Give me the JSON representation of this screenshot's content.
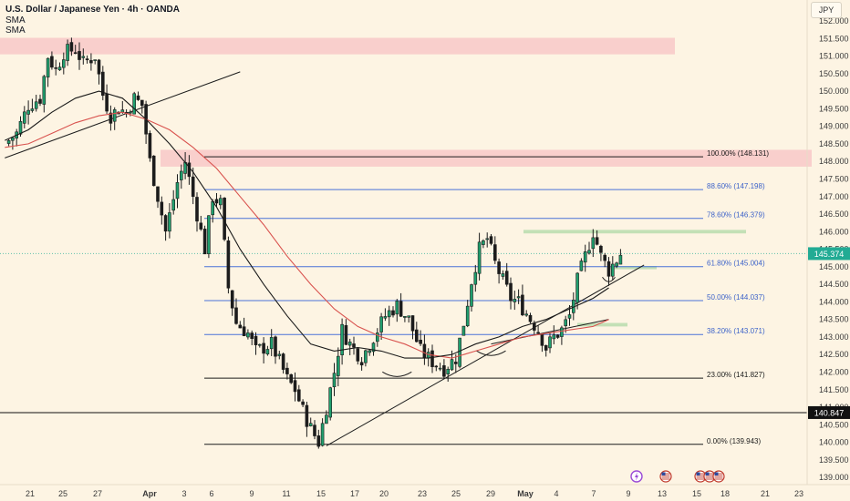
{
  "header": {
    "title": "U.S. Dollar / Japanese Yen · 4h · OANDA",
    "indicator_1": "SMA",
    "indicator_2": "SMA"
  },
  "currency_button": "JPY",
  "price_badges": {
    "current": "145.374",
    "marked": "140.847"
  },
  "colors": {
    "background": "#fdf4e3",
    "up_candle": "#1f1f1f",
    "fib_line": "#4a72d8",
    "fib_text": "#3d63c9",
    "resistance_zone": "#f8c6c6",
    "support_zone": "#b9dcae",
    "sma_fast": "#1a1a1a",
    "sma_slow": "#d9534f",
    "current_badge": "#22ab94"
  },
  "event_icons": [
    "lightning-icon",
    "us-flag-icon",
    "us-flag-icon",
    "us-flag-icon",
    "us-flag-icon"
  ],
  "chart_data": {
    "type": "candlestick",
    "symbol": "USDJPY",
    "timeframe": "4h",
    "ylim": [
      138.7,
      152.2
    ],
    "y_ticks": [
      "152.000",
      "151.500",
      "151.000",
      "150.500",
      "150.000",
      "149.500",
      "149.000",
      "148.500",
      "148.000",
      "147.500",
      "147.000",
      "146.500",
      "146.000",
      "145.500",
      "145.000",
      "144.500",
      "144.000",
      "143.500",
      "143.000",
      "142.500",
      "142.000",
      "141.500",
      "141.000",
      "140.500",
      "140.000",
      "139.500",
      "139.000"
    ],
    "x_ticks": [
      "21",
      "25",
      "27",
      "Apr",
      "3",
      "6",
      "9",
      "11",
      "15",
      "17",
      "20",
      "23",
      "25",
      "29",
      "May",
      "4",
      "7",
      "9",
      "13",
      "15",
      "18",
      "21",
      "23"
    ],
    "fibonacci_levels": [
      {
        "label": "100.00% (148.131)",
        "value": 148.131
      },
      {
        "label": "88.60% (147.198)",
        "value": 147.198
      },
      {
        "label": "78.60% (146.379)",
        "value": 146.379
      },
      {
        "label": "61.80% (145.004)",
        "value": 145.004
      },
      {
        "label": "50.00% (144.037)",
        "value": 144.037
      },
      {
        "label": "38.20% (143.071)",
        "value": 143.071
      },
      {
        "label": "23.00% (141.827)",
        "value": 141.827
      },
      {
        "label": "0.00% (139.943)",
        "value": 139.943
      }
    ],
    "resistance_zones": [
      [
        151.05,
        151.52
      ],
      [
        147.85,
        148.33
      ]
    ],
    "support_zones": [
      [
        145.95,
        146.05
      ],
      [
        144.93,
        145.02
      ],
      [
        143.3,
        143.4
      ]
    ],
    "horizontal_line": 140.847,
    "current_price": 145.374,
    "close_path": [
      [
        0,
        148.5
      ],
      [
        3,
        148.8
      ],
      [
        6,
        149.6
      ],
      [
        9,
        149.8
      ],
      [
        11,
        151.0
      ],
      [
        13,
        150.6
      ],
      [
        15,
        151.1
      ],
      [
        18,
        151.2
      ],
      [
        20,
        150.8
      ],
      [
        23,
        151.0
      ],
      [
        25,
        149.9
      ],
      [
        27,
        149.3
      ],
      [
        29,
        149.5
      ],
      [
        31,
        149.4
      ],
      [
        33,
        149.8
      ],
      [
        35,
        149.6
      ],
      [
        37,
        148.0
      ],
      [
        39,
        147.0
      ],
      [
        41,
        146.0
      ],
      [
        44,
        147.4
      ],
      [
        46,
        148.0
      ],
      [
        49,
        146.5
      ],
      [
        51,
        145.5
      ],
      [
        53,
        147.0
      ],
      [
        55,
        146.8
      ],
      [
        57,
        144.4
      ],
      [
        59,
        143.4
      ],
      [
        62,
        143.1
      ],
      [
        64,
        142.6
      ],
      [
        68,
        142.8
      ],
      [
        72,
        141.8
      ],
      [
        74,
        141.5
      ],
      [
        76,
        140.9
      ],
      [
        78,
        140.4
      ],
      [
        80,
        140.0
      ],
      [
        82,
        141.0
      ],
      [
        84,
        142.0
      ],
      [
        86,
        143.2
      ],
      [
        88,
        142.8
      ],
      [
        91,
        142.4
      ],
      [
        94,
        143.0
      ],
      [
        97,
        143.6
      ],
      [
        100,
        143.9
      ],
      [
        103,
        143.5
      ],
      [
        106,
        142.6
      ],
      [
        109,
        142.3
      ],
      [
        112,
        142.1
      ],
      [
        115,
        142.4
      ],
      [
        117,
        143.4
      ],
      [
        119,
        144.6
      ],
      [
        121,
        145.5
      ],
      [
        123,
        145.8
      ],
      [
        125,
        145.1
      ],
      [
        127,
        144.6
      ],
      [
        129,
        144.1
      ],
      [
        131,
        144.0
      ],
      [
        134,
        143.5
      ],
      [
        136,
        143.2
      ],
      [
        138,
        142.7
      ],
      [
        140,
        143.0
      ],
      [
        142,
        143.2
      ],
      [
        144,
        143.6
      ],
      [
        146,
        144.6
      ],
      [
        148,
        145.3
      ],
      [
        150,
        146.0
      ],
      [
        152,
        145.3
      ],
      [
        154,
        144.9
      ],
      [
        156,
        145.2
      ],
      [
        157,
        145.374
      ]
    ],
    "sma_fast": [
      [
        0,
        148.6
      ],
      [
        6,
        148.9
      ],
      [
        12,
        149.4
      ],
      [
        18,
        149.8
      ],
      [
        24,
        150.0
      ],
      [
        30,
        149.8
      ],
      [
        36,
        149.2
      ],
      [
        42,
        148.5
      ],
      [
        48,
        147.7
      ],
      [
        54,
        146.7
      ],
      [
        60,
        145.5
      ],
      [
        66,
        144.5
      ],
      [
        72,
        143.6
      ],
      [
        78,
        142.8
      ],
      [
        84,
        142.6
      ],
      [
        90,
        142.7
      ],
      [
        96,
        142.6
      ],
      [
        102,
        142.4
      ],
      [
        108,
        142.4
      ],
      [
        114,
        142.5
      ],
      [
        120,
        142.8
      ],
      [
        126,
        143.0
      ],
      [
        132,
        143.3
      ],
      [
        138,
        143.5
      ],
      [
        144,
        143.8
      ],
      [
        150,
        144.1
      ],
      [
        154,
        144.4
      ]
    ],
    "sma_slow": [
      [
        0,
        148.4
      ],
      [
        6,
        148.5
      ],
      [
        12,
        148.8
      ],
      [
        18,
        149.1
      ],
      [
        24,
        149.3
      ],
      [
        30,
        149.4
      ],
      [
        36,
        149.2
      ],
      [
        42,
        148.9
      ],
      [
        48,
        148.4
      ],
      [
        54,
        147.8
      ],
      [
        60,
        147.0
      ],
      [
        66,
        146.2
      ],
      [
        72,
        145.3
      ],
      [
        78,
        144.5
      ],
      [
        84,
        143.8
      ],
      [
        90,
        143.3
      ],
      [
        96,
        143.0
      ],
      [
        102,
        142.8
      ],
      [
        108,
        142.5
      ],
      [
        114,
        142.4
      ],
      [
        120,
        142.6
      ],
      [
        126,
        142.8
      ],
      [
        132,
        143.0
      ],
      [
        138,
        143.1
      ],
      [
        144,
        143.2
      ],
      [
        150,
        143.3
      ],
      [
        154,
        143.5
      ]
    ],
    "trendlines": [
      {
        "from": [
          0,
          148.1
        ],
        "to": [
          60,
          150.55
        ]
      },
      {
        "from": [
          82,
          139.9
        ],
        "to": [
          163,
          145.05
        ]
      },
      {
        "from": [
          124,
          142.8
        ],
        "to": [
          154,
          143.5
        ]
      }
    ],
    "swing_arcs": [
      [
        100,
        141.9
      ],
      [
        124,
        142.5
      ],
      [
        154,
        144.6
      ]
    ]
  }
}
